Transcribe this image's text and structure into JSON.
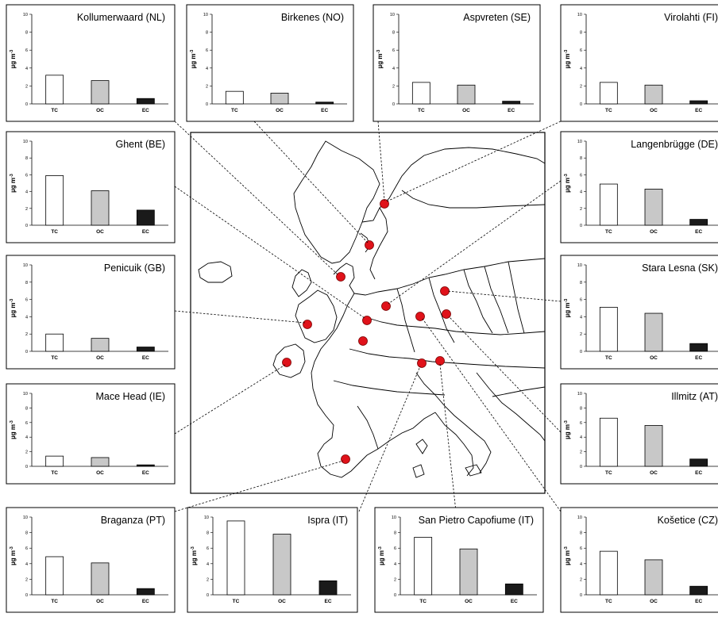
{
  "colors": {
    "TC": "#ffffff",
    "OC": "#c8c8c8",
    "EC": "#1a1a1a",
    "site_marker": "#e0121a",
    "line": "#000000"
  },
  "ylabel": "µg m",
  "ylabel_sup": "-3",
  "chart_data": [
    {
      "type": "bar",
      "title": "Kollumerwaard (NL)",
      "categories": [
        "TC",
        "OC",
        "EC"
      ],
      "values": [
        3.2,
        2.6,
        0.6
      ],
      "ylim": [
        0,
        10
      ],
      "yticks": [
        "0",
        "2",
        "4",
        "6",
        "8",
        "10"
      ]
    },
    {
      "type": "bar",
      "title": "Birkenes (NO)",
      "categories": [
        "TC",
        "OC",
        "EC"
      ],
      "values": [
        1.4,
        1.2,
        0.2
      ],
      "ylim": [
        0,
        10
      ],
      "yticks": [
        "0",
        "2",
        "4",
        "6",
        "8",
        "10"
      ]
    },
    {
      "type": "bar",
      "title": "Aspvreten (SE)",
      "categories": [
        "TC",
        "OC",
        "EC"
      ],
      "values": [
        2.4,
        2.1,
        0.3
      ],
      "ylim": [
        0,
        10
      ],
      "yticks": [
        "0",
        "2",
        "4",
        "6",
        "8",
        "10"
      ]
    },
    {
      "type": "bar",
      "title": "Virolahti (FI)",
      "categories": [
        "TC",
        "OC",
        "EC"
      ],
      "values": [
        2.4,
        2.1,
        0.35
      ],
      "ylim": [
        0,
        10
      ],
      "yticks": [
        "0",
        "2",
        "4",
        "6",
        "8",
        "10"
      ]
    },
    {
      "type": "bar",
      "title": "Ghent (BE)",
      "categories": [
        "TC",
        "OC",
        "EC"
      ],
      "values": [
        5.9,
        4.1,
        1.8
      ],
      "ylim": [
        0,
        10
      ],
      "yticks": [
        "0",
        "2",
        "4",
        "6",
        "8",
        "10"
      ]
    },
    {
      "type": "bar",
      "title": "Langenbrügge (DE)",
      "categories": [
        "TC",
        "OC",
        "EC"
      ],
      "values": [
        4.9,
        4.3,
        0.7
      ],
      "ylim": [
        0,
        10
      ],
      "yticks": [
        "0",
        "2",
        "4",
        "6",
        "8",
        "10"
      ]
    },
    {
      "type": "bar",
      "title": "Penicuik (GB)",
      "categories": [
        "TC",
        "OC",
        "EC"
      ],
      "values": [
        2.0,
        1.5,
        0.5
      ],
      "ylim": [
        0,
        10
      ],
      "yticks": [
        "0",
        "2",
        "4",
        "6",
        "8",
        "10"
      ]
    },
    {
      "type": "bar",
      "title": "Stara Lesna (SK)",
      "categories": [
        "TC",
        "OC",
        "EC"
      ],
      "values": [
        5.1,
        4.4,
        0.9
      ],
      "ylim": [
        0,
        10
      ],
      "yticks": [
        "0",
        "2",
        "4",
        "6",
        "8",
        "10"
      ]
    },
    {
      "type": "bar",
      "title": "Mace Head (IE)",
      "categories": [
        "TC",
        "OC",
        "EC"
      ],
      "values": [
        1.4,
        1.2,
        0.2
      ],
      "ylim": [
        0,
        10
      ],
      "yticks": [
        "0",
        "2",
        "4",
        "6",
        "8",
        "10"
      ]
    },
    {
      "type": "bar",
      "title": "Illmitz (AT)",
      "categories": [
        "TC",
        "OC",
        "EC"
      ],
      "values": [
        6.6,
        5.6,
        1.0
      ],
      "ylim": [
        0,
        10
      ],
      "yticks": [
        "0",
        "2",
        "4",
        "6",
        "8",
        "10"
      ]
    },
    {
      "type": "bar",
      "title": "Braganza (PT)",
      "categories": [
        "TC",
        "OC",
        "EC"
      ],
      "values": [
        4.9,
        4.1,
        0.8
      ],
      "ylim": [
        0,
        10
      ],
      "yticks": [
        "0",
        "2",
        "4",
        "6",
        "8",
        "10"
      ]
    },
    {
      "type": "bar",
      "title": "Ispra (IT)",
      "categories": [
        "TC",
        "OC",
        "EC"
      ],
      "values": [
        9.5,
        7.8,
        1.8
      ],
      "ylim": [
        0,
        10
      ],
      "yticks": [
        "0",
        "2",
        "4",
        "6",
        "8",
        "10"
      ]
    },
    {
      "type": "bar",
      "title": "San Pietro Capofiume  (IT)",
      "categories": [
        "TC",
        "OC",
        "EC"
      ],
      "values": [
        7.4,
        5.9,
        1.4
      ],
      "ylim": [
        0,
        10
      ],
      "yticks": [
        "0",
        "2",
        "4",
        "6",
        "8",
        "10"
      ]
    },
    {
      "type": "bar",
      "title": "Košetice (CZ)",
      "categories": [
        "TC",
        "OC",
        "EC"
      ],
      "values": [
        5.6,
        4.5,
        1.1
      ],
      "ylim": [
        0,
        10
      ],
      "yticks": [
        "0",
        "2",
        "4",
        "6",
        "8",
        "10"
      ]
    }
  ]
}
